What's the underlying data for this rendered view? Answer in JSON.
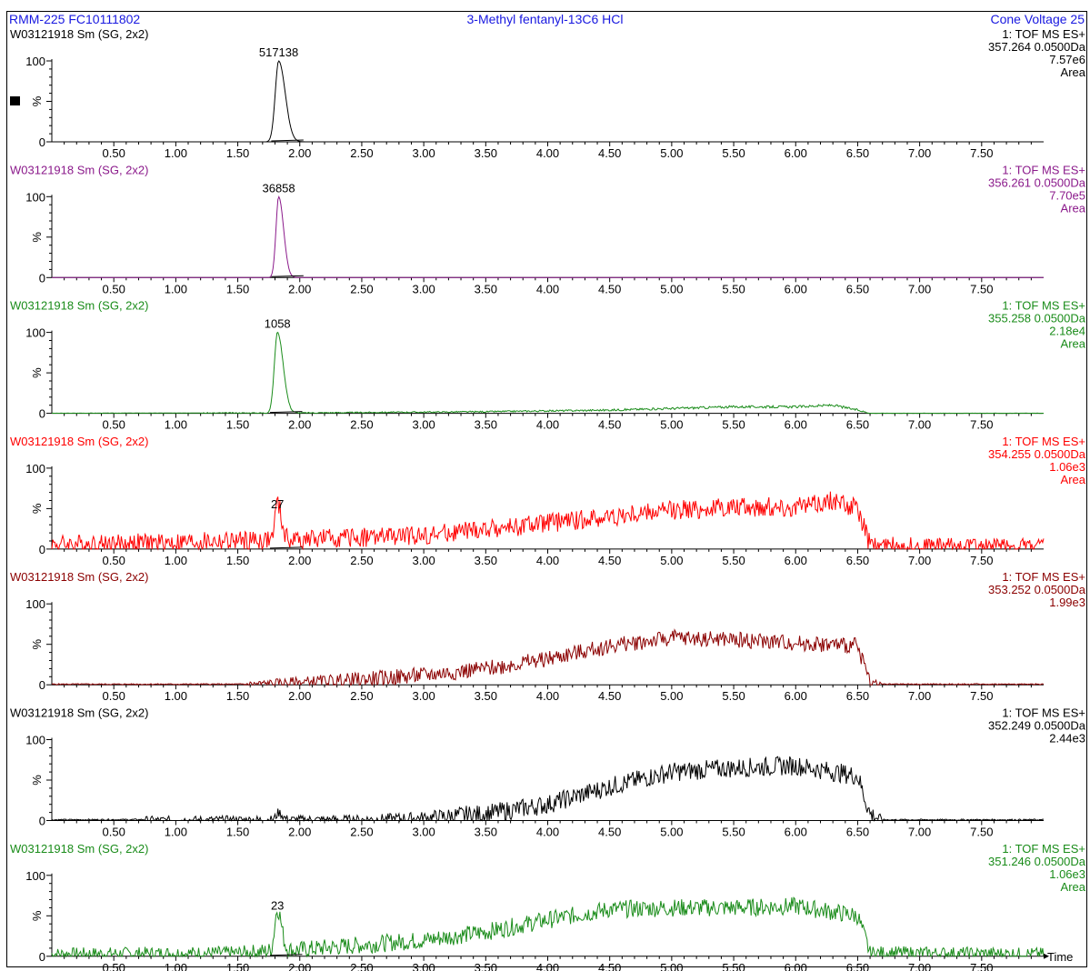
{
  "header": {
    "left": "RMM-225 FC10111802",
    "center": "3-Methyl fentanyl-13C6 HCl",
    "right": "Cone Voltage   25"
  },
  "x_axis_title": "Time",
  "chart_data": [
    {
      "type": "line",
      "sample": "W03121918 Sm (SG, 2x2)",
      "function": "1: TOF MS ES+",
      "mass": "357.264 0.0500Da",
      "intensity": "7.57e6",
      "area_label": "Area",
      "peak_label": "517138",
      "color": "#000000",
      "xlim": [
        0,
        8.0
      ],
      "ylim": [
        0,
        100
      ],
      "xticks": [
        0.5,
        1.0,
        1.5,
        2.0,
        2.5,
        3.0,
        3.5,
        4.0,
        4.5,
        5.0,
        5.5,
        6.0,
        6.5,
        7.0,
        7.5
      ],
      "y_tick_labels": [
        "0",
        "100"
      ],
      "ylabel": "%",
      "peak": {
        "center": 1.83,
        "width": 0.028,
        "height": 100,
        "tail": 0.07
      },
      "baseline": 0.2,
      "profile": [
        [
          0,
          0
        ],
        [
          8.0,
          0
        ]
      ],
      "noise": 0,
      "seed": 1
    },
    {
      "type": "line",
      "sample": "W03121918 Sm (SG, 2x2)",
      "function": "1: TOF MS ES+",
      "mass": "356.261 0.0500Da",
      "intensity": "7.70e5",
      "area_label": "Area",
      "peak_label": "36858",
      "color": "#8b1a8b",
      "xlim": [
        0,
        8.0
      ],
      "ylim": [
        0,
        100
      ],
      "xticks": [
        0.5,
        1.0,
        1.5,
        2.0,
        2.5,
        3.0,
        3.5,
        4.0,
        4.5,
        5.0,
        5.5,
        6.0,
        6.5,
        7.0,
        7.5
      ],
      "y_tick_labels": [
        "0",
        "100"
      ],
      "ylabel": "%",
      "peak": {
        "center": 1.83,
        "width": 0.022,
        "height": 100,
        "tail": 0.05
      },
      "baseline": 0.2,
      "profile": [
        [
          0,
          0
        ],
        [
          8.0,
          0
        ]
      ],
      "noise": 0,
      "seed": 2
    },
    {
      "type": "line",
      "sample": "W03121918 Sm (SG, 2x2)",
      "function": "1: TOF MS ES+",
      "mass": "355.258 0.0500Da",
      "intensity": "2.18e4",
      "area_label": "Area",
      "peak_label": "1058",
      "color": "#1a8c1a",
      "xlim": [
        0,
        8.0
      ],
      "ylim": [
        0,
        100
      ],
      "xticks": [
        0.5,
        1.0,
        1.5,
        2.0,
        2.5,
        3.0,
        3.5,
        4.0,
        4.5,
        5.0,
        5.5,
        6.0,
        6.5,
        7.0,
        7.5
      ],
      "y_tick_labels": [
        "0",
        "100"
      ],
      "ylabel": "%",
      "peak": {
        "center": 1.82,
        "width": 0.025,
        "height": 100,
        "tail": 0.06
      },
      "baseline": 0.5,
      "profile": [
        [
          0,
          0
        ],
        [
          2.0,
          0.5
        ],
        [
          3.5,
          2
        ],
        [
          4.5,
          4
        ],
        [
          5.0,
          6
        ],
        [
          5.5,
          8
        ],
        [
          6.0,
          8
        ],
        [
          6.3,
          10
        ],
        [
          6.5,
          4
        ],
        [
          6.6,
          0
        ],
        [
          8.0,
          0
        ]
      ],
      "noise": 1.5,
      "seed": 3
    },
    {
      "type": "line",
      "sample": "W03121918 Sm (SG, 2x2)",
      "function": "1: TOF MS ES+",
      "mass": "354.255 0.0500Da",
      "intensity": "1.06e3",
      "area_label": "Area",
      "peak_label": "27",
      "color": "#ff0000",
      "xlim": [
        0,
        8.0
      ],
      "ylim": [
        0,
        100
      ],
      "xticks": [
        0.5,
        1.0,
        1.5,
        2.0,
        2.5,
        3.0,
        3.5,
        4.0,
        4.5,
        5.0,
        5.5,
        6.0,
        6.5,
        7.0,
        7.5
      ],
      "y_tick_labels": [
        "0",
        "100"
      ],
      "ylabel": "%",
      "peak": {
        "center": 1.82,
        "width": 0.02,
        "height": 45,
        "tail": 0.03
      },
      "baseline": 5,
      "profile": [
        [
          0,
          6
        ],
        [
          1.0,
          8
        ],
        [
          2.0,
          12
        ],
        [
          3.0,
          17
        ],
        [
          3.5,
          24
        ],
        [
          4.0,
          32
        ],
        [
          4.5,
          40
        ],
        [
          5.0,
          48
        ],
        [
          5.5,
          52
        ],
        [
          6.0,
          52
        ],
        [
          6.3,
          60
        ],
        [
          6.5,
          50
        ],
        [
          6.6,
          5
        ],
        [
          8.0,
          4
        ]
      ],
      "noise": 12,
      "seed": 4
    },
    {
      "type": "line",
      "sample": "W03121918 Sm (SG, 2x2)",
      "function": "1: TOF MS ES+",
      "mass": "353.252 0.0500Da",
      "intensity": "1.99e3",
      "area_label": "",
      "peak_label": "",
      "color": "#8b0000",
      "xlim": [
        0,
        8.0
      ],
      "ylim": [
        0,
        100
      ],
      "xticks": [
        0.5,
        1.0,
        1.5,
        2.0,
        2.5,
        3.0,
        3.5,
        4.0,
        4.5,
        5.0,
        5.5,
        6.0,
        6.5,
        7.0,
        7.5
      ],
      "y_tick_labels": [
        "0",
        "100"
      ],
      "ylabel": "%",
      "peak": {
        "center": 1.82,
        "width": 0.02,
        "height": 0,
        "tail": 0.03
      },
      "baseline": 0,
      "profile": [
        [
          0,
          0
        ],
        [
          1.5,
          0
        ],
        [
          2.0,
          3
        ],
        [
          2.5,
          6
        ],
        [
          3.0,
          12
        ],
        [
          3.5,
          20
        ],
        [
          4.0,
          32
        ],
        [
          4.5,
          48
        ],
        [
          5.0,
          58
        ],
        [
          5.5,
          56
        ],
        [
          6.0,
          52
        ],
        [
          6.5,
          48
        ],
        [
          6.6,
          3
        ],
        [
          6.7,
          0
        ],
        [
          8.0,
          0
        ]
      ],
      "noise": 10,
      "seed": 5
    },
    {
      "type": "line",
      "sample": "W03121918 Sm (SG, 2x2)",
      "function": "1: TOF MS ES+",
      "mass": "352.249 0.0500Da",
      "intensity": "2.44e3",
      "area_label": "",
      "peak_label": "",
      "color": "#000000",
      "xlim": [
        0,
        8.0
      ],
      "ylim": [
        0,
        100
      ],
      "xticks": [
        0.5,
        1.0,
        1.5,
        2.0,
        2.5,
        3.0,
        3.5,
        4.0,
        4.5,
        5.0,
        5.5,
        6.0,
        6.5,
        7.0,
        7.5
      ],
      "y_tick_labels": [
        "0",
        "100"
      ],
      "ylabel": "%",
      "peak": {
        "center": 1.83,
        "width": 0.02,
        "height": 9,
        "tail": 0.03
      },
      "baseline": 0.5,
      "profile": [
        [
          0,
          0
        ],
        [
          2.5,
          1
        ],
        [
          3.0,
          3
        ],
        [
          3.5,
          8
        ],
        [
          4.0,
          20
        ],
        [
          4.5,
          42
        ],
        [
          5.0,
          60
        ],
        [
          5.5,
          65
        ],
        [
          6.0,
          68
        ],
        [
          6.5,
          55
        ],
        [
          6.6,
          8
        ],
        [
          6.7,
          0
        ],
        [
          8.0,
          0
        ]
      ],
      "noise": 12,
      "seed": 6
    },
    {
      "type": "line",
      "sample": "W03121918 Sm (SG, 2x2)",
      "function": "1: TOF MS ES+",
      "mass": "351.246 0.0500Da",
      "intensity": "1.06e3",
      "area_label": "Area",
      "peak_label": "23",
      "color": "#1a8c1a",
      "xlim": [
        0,
        8.0
      ],
      "ylim": [
        0,
        100
      ],
      "xticks": [
        0.5,
        1.0,
        1.5,
        2.0,
        2.5,
        3.0,
        3.5,
        4.0,
        4.5,
        5.0,
        5.5,
        6.0,
        6.5,
        7.0,
        7.5
      ],
      "y_tick_labels": [
        "0",
        "100"
      ],
      "ylabel": "%",
      "peak": {
        "center": 1.82,
        "width": 0.022,
        "height": 52,
        "tail": 0.03
      },
      "baseline": 3,
      "profile": [
        [
          0,
          3
        ],
        [
          1.5,
          4
        ],
        [
          2.0,
          8
        ],
        [
          2.5,
          14
        ],
        [
          3.0,
          20
        ],
        [
          3.5,
          30
        ],
        [
          4.0,
          45
        ],
        [
          4.5,
          58
        ],
        [
          5.0,
          60
        ],
        [
          5.5,
          60
        ],
        [
          6.0,
          62
        ],
        [
          6.5,
          50
        ],
        [
          6.6,
          4
        ],
        [
          8.0,
          3
        ]
      ],
      "noise": 11,
      "seed": 7
    }
  ]
}
